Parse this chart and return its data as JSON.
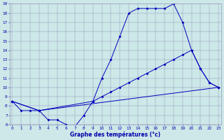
{
  "title": "Graphe des températures (°c)",
  "xlim": [
    -0.5,
    23.5
  ],
  "ylim": [
    6,
    19
  ],
  "yticks": [
    6,
    7,
    8,
    9,
    10,
    11,
    12,
    13,
    14,
    15,
    16,
    17,
    18,
    19
  ],
  "xticks": [
    0,
    1,
    2,
    3,
    4,
    5,
    6,
    7,
    8,
    9,
    10,
    11,
    12,
    13,
    14,
    15,
    16,
    17,
    18,
    19,
    20,
    21,
    22,
    23
  ],
  "background_color": "#cce8e8",
  "line_color": "#0000bb",
  "grid_color": "#9999bb",
  "line1_x": [
    0,
    1,
    2,
    3,
    4,
    5,
    6,
    7,
    8,
    9,
    10,
    11,
    12,
    13,
    14,
    15,
    16,
    17,
    18
  ],
  "line1_y": [
    8.5,
    7.5,
    7.5,
    7.5,
    6.5,
    6.5,
    6.0,
    5.8,
    7.0,
    8.5,
    11.0,
    13.0,
    15.5,
    18.0,
    18.5,
    18.5,
    18.5,
    18.5,
    19.0
  ],
  "line2_x": [
    18,
    19,
    20,
    21,
    22,
    23
  ],
  "line2_y": [
    19.0,
    17.0,
    14.0,
    12.0,
    10.5,
    10.0
  ],
  "line3_x": [
    0,
    3,
    9,
    10,
    11,
    12,
    13,
    14,
    15,
    16,
    17,
    18,
    19,
    20,
    21,
    22,
    23
  ],
  "line3_y": [
    8.5,
    7.5,
    8.5,
    9.0,
    9.5,
    10.0,
    10.5,
    11.0,
    11.5,
    12.0,
    12.5,
    13.0,
    13.5,
    14.0,
    12.0,
    10.5,
    10.0
  ],
  "line4_x": [
    0,
    3,
    23
  ],
  "line4_y": [
    8.5,
    7.5,
    10.0
  ],
  "markersize": 2.0
}
